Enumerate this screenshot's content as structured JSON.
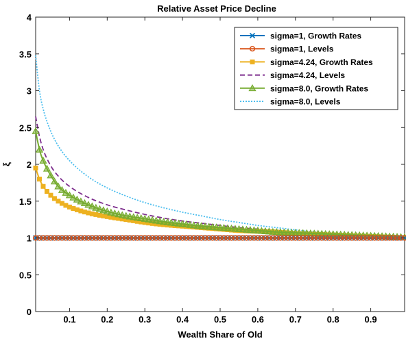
{
  "chart_data": {
    "type": "line",
    "title": "Relative Asset Price Decline",
    "xlabel": "Wealth Share of Old",
    "ylabel": "ξ",
    "xlim": [
      0.01,
      0.99
    ],
    "ylim": [
      0,
      4
    ],
    "xticks": [
      0.1,
      0.2,
      0.3,
      0.4,
      0.5,
      0.6,
      0.7,
      0.8,
      0.9
    ],
    "yticks": [
      0,
      0.5,
      1,
      1.5,
      2,
      2.5,
      3,
      3.5,
      4
    ],
    "grid": false,
    "legend_position": "top-right",
    "x": [
      0.01,
      0.02,
      0.03,
      0.05,
      0.07,
      0.1,
      0.15,
      0.2,
      0.25,
      0.3,
      0.35,
      0.4,
      0.45,
      0.5,
      0.55,
      0.6,
      0.65,
      0.7,
      0.75,
      0.8,
      0.85,
      0.9,
      0.95,
      0.99
    ],
    "series": [
      {
        "name": "sigma=1, Growth Rates",
        "color": "#0072BD",
        "marker": "x",
        "dash": "solid",
        "values": [
          1,
          1,
          1,
          1,
          1,
          1,
          1,
          1,
          1,
          1,
          1,
          1,
          1,
          1,
          1,
          1,
          1,
          1,
          1,
          1,
          1,
          1,
          1,
          1
        ]
      },
      {
        "name": "sigma=1, Levels",
        "color": "#D95319",
        "marker": "circle",
        "dash": "solid",
        "values": [
          1,
          1,
          1,
          1,
          1,
          1,
          1,
          1,
          1,
          1,
          1,
          1,
          1,
          1,
          1,
          1,
          1,
          1,
          1,
          1,
          1,
          1,
          1,
          1
        ]
      },
      {
        "name": "sigma=4.24, Growth Rates",
        "color": "#EDB120",
        "marker": "square",
        "dash": "solid",
        "values": [
          1.95,
          1.8,
          1.7,
          1.58,
          1.5,
          1.42,
          1.34,
          1.29,
          1.25,
          1.21,
          1.18,
          1.16,
          1.14,
          1.12,
          1.1,
          1.09,
          1.08,
          1.06,
          1.05,
          1.04,
          1.03,
          1.02,
          1.01,
          1.0
        ]
      },
      {
        "name": "sigma=4.24, Levels",
        "color": "#7E2F8E",
        "marker": "none",
        "dash": "dashed",
        "values": [
          2.65,
          2.38,
          2.2,
          1.98,
          1.84,
          1.7,
          1.55,
          1.45,
          1.38,
          1.32,
          1.27,
          1.23,
          1.2,
          1.17,
          1.14,
          1.12,
          1.1,
          1.08,
          1.06,
          1.04,
          1.03,
          1.02,
          1.01,
          1.0
        ]
      },
      {
        "name": "sigma=8.0, Growth Rates",
        "color": "#77AC30",
        "marker": "triangle",
        "dash": "solid",
        "values": [
          2.45,
          2.2,
          2.05,
          1.85,
          1.7,
          1.58,
          1.45,
          1.36,
          1.3,
          1.26,
          1.22,
          1.19,
          1.16,
          1.14,
          1.12,
          1.1,
          1.08,
          1.07,
          1.06,
          1.05,
          1.04,
          1.03,
          1.02,
          1.01
        ]
      },
      {
        "name": "sigma=8.0, Levels",
        "color": "#4DBEEE",
        "marker": "none",
        "dash": "dotted",
        "values": [
          3.48,
          3.0,
          2.75,
          2.45,
          2.25,
          2.05,
          1.83,
          1.68,
          1.57,
          1.48,
          1.41,
          1.35,
          1.3,
          1.25,
          1.21,
          1.17,
          1.14,
          1.11,
          1.08,
          1.06,
          1.04,
          1.02,
          1.01,
          1.0
        ]
      }
    ]
  }
}
